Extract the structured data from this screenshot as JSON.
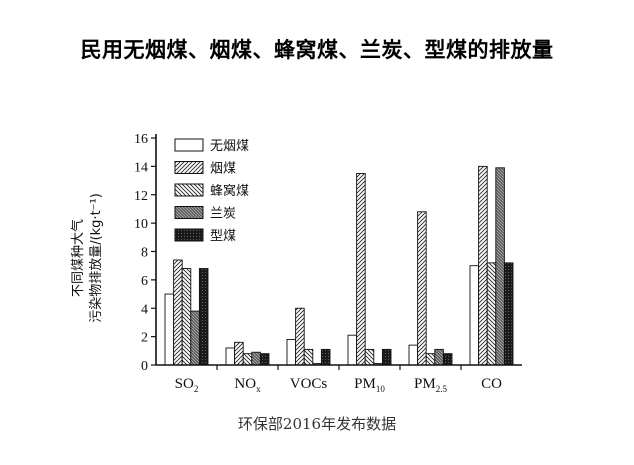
{
  "page_title": "民用无烟煤、烟煤、蜂窝煤、兰炭、型煤的排放量",
  "source_note": "环保部2016年发布数据",
  "chart_data": {
    "type": "bar",
    "title": "民用无烟煤、烟煤、蜂窝煤、兰炭、型煤的排放量",
    "xlabel": "",
    "ylabel_lines": [
      "不同煤种大气",
      "污染物排放量/(kg·t⁻¹)"
    ],
    "ylim": [
      0,
      16
    ],
    "yticks": [
      0,
      2,
      4,
      6,
      8,
      10,
      12,
      14,
      16
    ],
    "grid": false,
    "legend_position": "top-left",
    "categories": [
      {
        "main": "SO",
        "sub": "2"
      },
      {
        "main": "NO",
        "sub": "x"
      },
      {
        "main": "VOCs",
        "sub": ""
      },
      {
        "main": "PM",
        "sub": "10"
      },
      {
        "main": "PM",
        "sub": "2.5"
      },
      {
        "main": "CO",
        "sub": ""
      }
    ],
    "series": [
      {
        "name": "无烟煤",
        "values": [
          5.0,
          1.2,
          1.8,
          2.1,
          1.4,
          7.0
        ]
      },
      {
        "name": "烟煤",
        "values": [
          7.4,
          1.6,
          4.0,
          13.5,
          10.8,
          14.0
        ]
      },
      {
        "name": "蜂窝煤",
        "values": [
          6.8,
          0.8,
          1.1,
          1.1,
          0.8,
          7.2
        ]
      },
      {
        "name": "兰炭",
        "values": [
          3.8,
          0.9,
          0.1,
          0.1,
          1.1,
          13.9
        ]
      },
      {
        "name": "型煤",
        "values": [
          6.8,
          0.8,
          1.1,
          1.1,
          0.8,
          7.2
        ]
      }
    ]
  }
}
